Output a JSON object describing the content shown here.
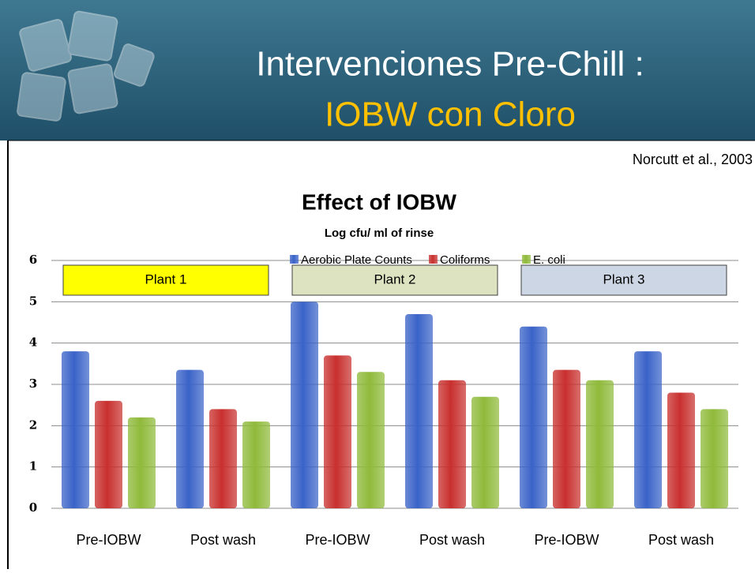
{
  "header": {
    "title_line1": "Intervenciones Pre-Chill :",
    "title_line2": "IOBW con Cloro"
  },
  "citation": "Norcutt et al., 2003",
  "chart_data": {
    "type": "bar",
    "title": "Effect of IOBW",
    "subtitle": "Log cfu/ ml of rinse",
    "categories": [
      "Pre-IOBW",
      "Post wash",
      "Pre-IOBW",
      "Post wash",
      "Pre-IOBW",
      "Post wash"
    ],
    "series": [
      {
        "name": "Aerobic Plate Counts",
        "color": "#3a63c8",
        "values": [
          3.8,
          3.35,
          5.0,
          4.7,
          4.4,
          3.8
        ]
      },
      {
        "name": "Coliforms",
        "color": "#c8302e",
        "values": [
          2.6,
          2.4,
          3.7,
          3.1,
          3.35,
          2.8
        ]
      },
      {
        "name": "E. coli",
        "color": "#8fba3a",
        "values": [
          2.2,
          2.1,
          3.3,
          2.7,
          3.1,
          2.4
        ]
      }
    ],
    "group_labels": [
      {
        "text": "Plant 1",
        "color": "#ffff00"
      },
      {
        "text": "Plant 2",
        "color": "#dde3c0"
      },
      {
        "text": "Plant 3",
        "color": "#cdd6e4"
      }
    ],
    "ylim": [
      0,
      6
    ],
    "yticks": [
      0,
      1,
      2,
      3,
      4,
      5,
      6
    ],
    "grid": true,
    "legend": "top"
  }
}
